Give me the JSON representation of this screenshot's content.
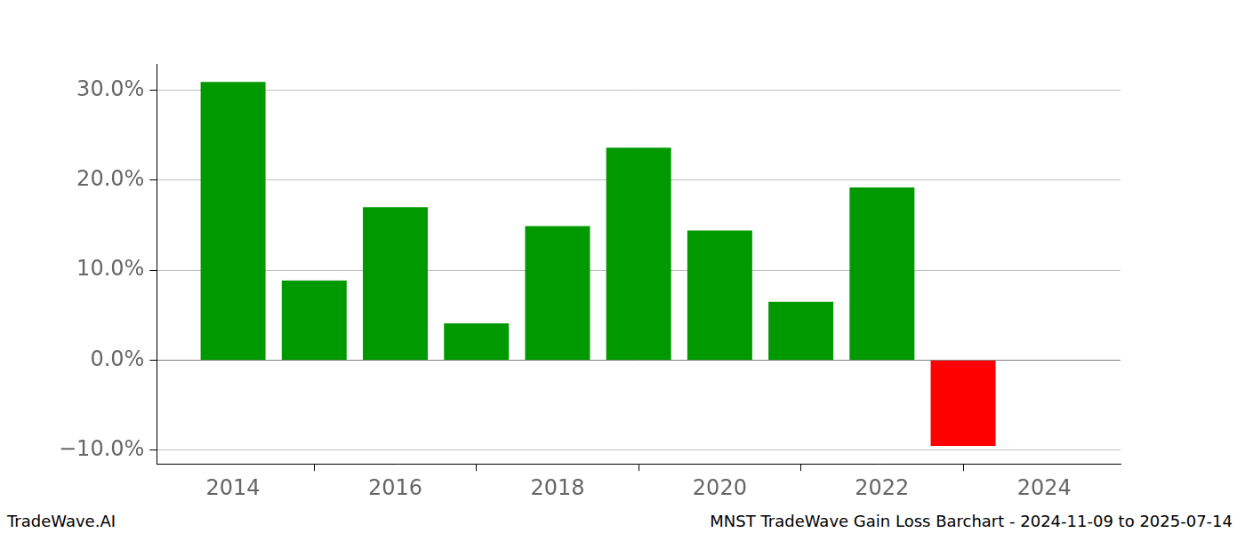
{
  "chart_data": {
    "type": "bar",
    "x": [
      2014,
      2015,
      2016,
      2017,
      2018,
      2019,
      2020,
      2021,
      2022,
      2023,
      2024
    ],
    "values": [
      30.9,
      8.85,
      17.0,
      4.1,
      14.9,
      23.6,
      14.4,
      6.5,
      19.2,
      -9.5,
      0
    ],
    "colors": [
      "#009900",
      "#009900",
      "#009900",
      "#009900",
      "#009900",
      "#009900",
      "#009900",
      "#009900",
      "#009900",
      "#ff0000",
      "#009900"
    ],
    "xlim": [
      2013.06,
      2024.94
    ],
    "xticks": [
      2014,
      2016,
      2018,
      2020,
      2022,
      2024
    ],
    "ylim": [
      -11.5,
      32.9
    ],
    "yticks": [
      {
        "value": -10,
        "label": "−10.0%"
      },
      {
        "value": 0,
        "label": "0.0%"
      },
      {
        "value": 10,
        "label": "10.0%"
      },
      {
        "value": 20,
        "label": "20.0%"
      },
      {
        "value": 30,
        "label": "30.0%"
      }
    ],
    "grid": "y",
    "annotations": [
      "TradeWave.AI",
      "MNST TradeWave Gain Loss Barchart - 2024-11-09 to 2025-07-14"
    ]
  }
}
